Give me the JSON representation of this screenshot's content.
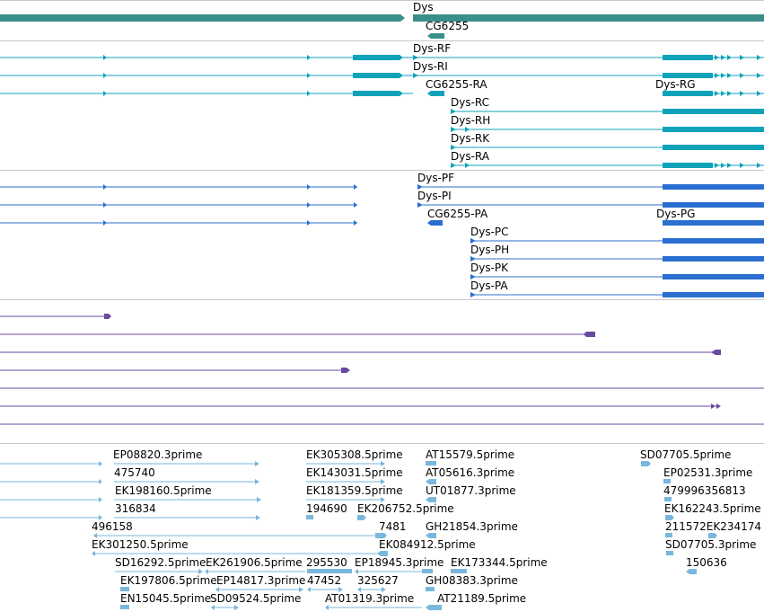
{
  "colors": {
    "gene": "#3a8f8a",
    "rna": "#0fa3ba",
    "protein": "#2a6fd0",
    "evidence": "#6a4aa0",
    "est": "#79b7dc",
    "divider": "#c8c8c8"
  },
  "tracks": {
    "gene": {
      "features": [
        {
          "label": "Dys"
        },
        {
          "label": "CG6255"
        }
      ]
    },
    "transcripts": {
      "features": [
        {
          "label": "Dys-RF"
        },
        {
          "label": "Dys-RI"
        },
        {
          "label": "CG6255-RA"
        },
        {
          "label": "Dys-RG"
        },
        {
          "label": "Dys-RC"
        },
        {
          "label": "Dys-RH"
        },
        {
          "label": "Dys-RK"
        },
        {
          "label": "Dys-RA"
        }
      ]
    },
    "proteins": {
      "features": [
        {
          "label": "Dys-PF"
        },
        {
          "label": "Dys-PI"
        },
        {
          "label": "CG6255-PA"
        },
        {
          "label": "Dys-PG"
        },
        {
          "label": "Dys-PC"
        },
        {
          "label": "Dys-PH"
        },
        {
          "label": "Dys-PK"
        },
        {
          "label": "Dys-PA"
        }
      ]
    },
    "ests": {
      "features": [
        {
          "label": "EP08820.3prime"
        },
        {
          "label": "EK305308.5prime"
        },
        {
          "label": "AT15579.5prime"
        },
        {
          "label": "SD07705.5prime"
        },
        {
          "label": "475740"
        },
        {
          "label": "EK143031.5prime"
        },
        {
          "label": "AT05616.3prime"
        },
        {
          "label": "EP02531.3prime"
        },
        {
          "label": "EK198160.5prime"
        },
        {
          "label": "EK181359.5prime"
        },
        {
          "label": "UT01877.3prime"
        },
        {
          "label": "479996356813"
        },
        {
          "label": "316834"
        },
        {
          "label": "194690"
        },
        {
          "label": "EK206752.5prime"
        },
        {
          "label": "EK162243.5prime"
        },
        {
          "label": "496158"
        },
        {
          "label": "7481"
        },
        {
          "label": "GH21854.3prime"
        },
        {
          "label": "211572EK234174"
        },
        {
          "label": "EK301250.5prime"
        },
        {
          "label": "EK084912.5prime"
        },
        {
          "label": "SD07705.3prime"
        },
        {
          "label": "SD16292.5prime"
        },
        {
          "label": "EK261906.5prime"
        },
        {
          "label": "295530"
        },
        {
          "label": "EP18945.3prime"
        },
        {
          "label": "EK173344.5prime"
        },
        {
          "label": "150636"
        },
        {
          "label": "EK197806.5prime"
        },
        {
          "label": "EP14817.3prime"
        },
        {
          "label": "47452"
        },
        {
          "label": "325627"
        },
        {
          "label": "GH08383.3prime"
        },
        {
          "label": "EN15045.5prime"
        },
        {
          "label": "SD09524.5prime"
        },
        {
          "label": "AT01319.3prime"
        },
        {
          "label": "AT21189.5prime"
        }
      ]
    }
  }
}
